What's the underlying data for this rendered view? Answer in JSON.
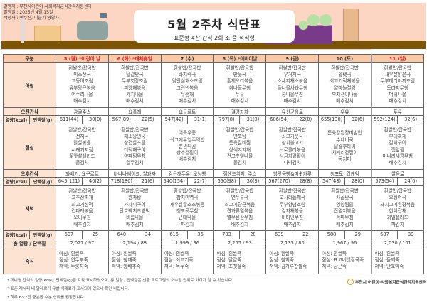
{
  "header": {
    "publisher": "발행처 : 부천시어린이·사회복지급식관리지원센터",
    "date": "발행일 : 2025년 4월 15일",
    "author": "작성자 : 이수진, 이슬기 영양사",
    "title": "5월 2주차 식단표",
    "subtitle": "표준형 4찬 간식 2회 조·중·석식형"
  },
  "table": {
    "corner": "구분",
    "labels": {
      "breakfast": "아침",
      "am_snack": "오전간식",
      "kcal": "열량(kcal)",
      "protein": "단백질(g)",
      "lunch": "점심",
      "pm_snack": "오후간식",
      "dinner": "저녁",
      "total": "총 열량 / 단백질",
      "porridge": "죽식"
    },
    "days": [
      {
        "label": "5 (월) *어린이 날",
        "holiday": true,
        "breakfast": [
          "흰쌀밥/잡곡밥",
          "미소장국",
          "고등어조림",
          "유부당근볶음",
          "어수리나물",
          "배추김치"
        ],
        "am_snack": "감귤주스",
        "bk_kcal": "611(44)",
        "bk_prot": "30(0)",
        "lunch": [
          "흰쌀밥/잡곡밥",
          "선지국",
          "닭살볶음",
          "시래기지짐",
          "꽃맛살샐러드",
          "물김치"
        ],
        "pm_snack": "꽈배기, 요구르트",
        "ln_kcal": "645(121)",
        "ln_prot": "40(2)",
        "dinner": [
          "흰쌀밥/잡곡밥",
          "고추장찌개",
          "쇠고기산적",
          "건파래볶음",
          "오이무침",
          "배추김치"
        ],
        "dn_kcal": "607",
        "dn_prot": "25",
        "total": "2,027  /  97",
        "porridge": [
          "아침: 흰쌀죽",
          "점심: 연두부죽",
          "저녁: 누룽지죽"
        ]
      },
      {
        "label": "6 (화) *대체휴일",
        "holiday": true,
        "breakfast": [
          "흰쌀밥/잡곡밥",
          "달걀팟국",
          "두부엿장조림",
          "피망채볶음",
          "가지나물",
          "배추김치"
        ],
        "am_snack": "요플레",
        "bk_kcal": "567(89)",
        "bk_prot": "22(5)",
        "lunch": [
          "흰쌀밥/잡곡밥",
          "채소당면국",
          "삼겹살조림",
          "더덕채구이",
          "양파찜무침",
          "열무김치"
        ],
        "pm_snack": "바나나쉐이크, 쌀과자",
        "ln_kcal": "718(180)",
        "ln_prot": "21(6)",
        "dinner": [
          "흰쌀밥/잡곡밥",
          "완자탕",
          "가자미구이",
          "단호박치즈범벅",
          "비름나물",
          "배추김치"
        ],
        "dn_kcal": "640",
        "dn_prot": "34",
        "total": "2,194  /  88",
        "porridge": [
          "아침: 흰쌀죽",
          "점심: 참깨죽",
          "저녁: 양배추죽"
        ]
      },
      {
        "label": "7 (수)",
        "holiday": false,
        "breakfast": [
          "흰쌀밥/잡곡밥",
          "바지락국",
          "닭안심채소조림",
          "그린빈볶음",
          "무생채",
          "배추김치"
        ],
        "am_snack": "요구르트",
        "bk_kcal": "547(42)",
        "bk_prot": "31(1)",
        "lunch": [
          "어묵우동",
          "쇠고기우엉주먹밥",
          "춘권튀김",
          "상추겉절이",
          "배추김치"
        ],
        "pm_snack": "검은깨두유, 모닝빵",
        "ln_kcal": "640(154)",
        "ln_prot": "22(7)",
        "dinner": [
          "흰쌀밥/잡곡밥",
          "참치미역국",
          "새우살굴소스볶음",
          "청포묵무침",
          "근대나물",
          "파김치"
        ],
        "dn_kcal": "615",
        "dn_prot": "36",
        "total": "1,999  /  96",
        "porridge": [
          "아침: 흰쌀죽",
          "점심: 쇠고기죽",
          "저녁: 녹두죽"
        ]
      },
      {
        "label": "8 (목) *어버이날",
        "holiday": false,
        "breakfast": [
          "흰쌀밥/잡곡밥",
          "만둣국",
          "훈제오리볶음",
          "취나물무침",
          "두유",
          "배추김치"
        ],
        "am_snack": "결명자차",
        "bk_kcal": "797(8)",
        "bk_prot": "31(0)",
        "lunch": [
          "흰쌀밥/잡곡밥",
          "연포탕",
          "돈육갈비찜",
          "상색겨자채",
          "건고춧잎나물",
          "물김치"
        ],
        "pm_snack": "잼샌드위치, 주스",
        "ln_kcal": "650(98)",
        "ln_prot": "30(3)",
        "dinner": [
          "흰쌀밥/잡곡밥",
          "연두부국",
          "쇠고기당근볶음",
          "견과류멸볶음",
          "열무된장무침",
          "배추김치"
        ],
        "dn_kcal": "703",
        "dn_prot": "28",
        "total": "2,255  /  93",
        "porridge": [
          "아침: 흰쌀죽",
          "점심: 달걀죽",
          "저녁: 조갯살죽"
        ]
      },
      {
        "label": "9 (금)",
        "holiday": false,
        "breakfast": [
          "흰쌀밥/잡곡밥",
          "우거지국",
          "소세지채소볶음",
          "돌나물사과무침",
          "콩나물무침",
          "배추김치"
        ],
        "am_snack": "유산균음료",
        "bk_kcal": "606(54)",
        "bk_prot": "22(0)",
        "lunch": [
          "흰쌀밥/잡곡밥",
          "쇠고기뭇국",
          "삼치불고기",
          "브로콜리볶음",
          "시금치겉절이",
          "나박김치"
        ],
        "pm_snack": "방앗금빵&미숫가루",
        "ln_kcal": "567(270)",
        "ln_prot": "28(8)",
        "dinner": [
          "흰쌀밥/잡곡밥",
          "고사리들깨국",
          "두부양념조림",
          "감자채볶음",
          "비타민무침",
          "배추김치"
        ],
        "dn_kcal": "639",
        "dn_prot": "22",
        "total": "2,135  /  80",
        "porridge": [
          "아침: 흰쌀죽",
          "점심: 참치죽",
          "저녁: 김가루찹쌀죽"
        ]
      },
      {
        "label": "10 (토)",
        "holiday": false,
        "breakfast": [
          "흰쌀밥/잡곡밥",
          "황탯국",
          "쇠고기적채볶음",
          "알마늘절임",
          "부지갱이나물",
          "배추김치"
        ],
        "am_snack": "우유",
        "bk_kcal": "655(130)",
        "bk_prot": "32(6)",
        "lunch": [
          "돈육강된장비빔밥",
          "수제비국",
          "달걀후라이",
          "치커리겉절이",
          "동치미"
        ],
        "pm_snack": "청포도, 컵케익",
        "ln_kcal": "547(48)",
        "ln_prot": "28(0)",
        "dinner": [
          "흰쌀밥/잡곡밥",
          "사골팟국",
          "영양찜닭",
          "잔멸치볶음",
          "쪽파무침",
          "배추김치"
        ],
        "dn_kcal": "588",
        "dn_prot": "29",
        "total": "1,967  /  96",
        "porridge": [
          "아침: 흰쌀죽",
          "점심: 표고버섯장국죽",
          "저녁: 당근죽"
        ]
      },
      {
        "label": "11 (일)",
        "holiday": true,
        "breakfast": [
          "흰쌀밥/잡곡밥",
          "새우살맑은국",
          "두부데리야끼조림",
          "도라지무침",
          "머위나물",
          "배추김치"
        ],
        "am_snack": "두유",
        "bk_kcal": "592(124)",
        "bk_prot": "32(6)",
        "lunch": [
          "흰쌀밥/잡곡밥",
          "부대찌개",
          "갈치구이",
          "깻잎찜",
          "미나리새콤무침",
          "배추김치"
        ],
        "pm_snack": "쌀음료",
        "ln_kcal": "573(54)",
        "ln_prot": "24(0)",
        "dinner": [
          "흰쌀밥/잡곡밥",
          "오징어국",
          "돼지고기된장볶음",
          "한식잡채",
          "과일샐러드",
          "파김치"
        ],
        "dn_kcal": "687",
        "dn_prot": "39",
        "total": "2,030  /  101",
        "porridge": [
          "아침: 흰쌀죽",
          "점심: 들깨죽",
          "저녁: 단호박죽"
        ]
      }
    ]
  },
  "footer": {
    "notes": [
      "* 끼니별 간식의 열량(kcal), 단백질(g)을 각각 표시하였으며, 총 열량 / 단백질은 산출 프로그램의 소수점 단위로 차이가 날 수 있습니다.",
      "* 표준 레시피 내 알레르기 유발 식재료가 표시되어 있으니 확인 바랍니다.",
      "* 하루 6~7잔 충분한 수분 섭취를 권장합니다."
    ],
    "logo_text": "부천시 어린이·사회복지급식관리지원센터"
  },
  "colors": {
    "holiday": "#e8141b",
    "header_bg": "#f9c9a8",
    "label_bg": "#fce3d2",
    "floor": "#7b5406",
    "banner": "#fcd6c2"
  }
}
